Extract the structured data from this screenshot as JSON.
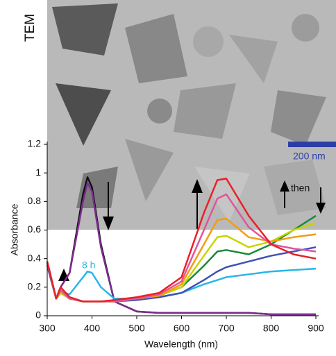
{
  "chart_data": {
    "type": "line",
    "xlabel": "Wavelength (nm)",
    "ylabel": "Absorbance",
    "image_label": "TEM",
    "scale_bar_label": "200 nm",
    "annotations": [
      "8 h",
      "then"
    ],
    "x": [
      300,
      320,
      330,
      350,
      380,
      390,
      400,
      420,
      450,
      500,
      550,
      600,
      650,
      680,
      700,
      750,
      800,
      850,
      900
    ],
    "xlim": [
      300,
      900
    ],
    "xticks": [
      300,
      400,
      500,
      600,
      700,
      800,
      900
    ],
    "ylim": [
      0,
      1.2
    ],
    "yticks": [
      0,
      0.2,
      0.4,
      0.6,
      0.8,
      1,
      1.2
    ],
    "series": [
      {
        "color": "#111111",
        "values": [
          0.38,
          0.12,
          0.2,
          0.3,
          0.85,
          0.97,
          0.9,
          0.5,
          0.1,
          0.03,
          0.02,
          0.02,
          0.02,
          0.02,
          0.02,
          0.02,
          0.01,
          0.01,
          0.01
        ]
      },
      {
        "color": "#7b2d8e",
        "values": [
          0.37,
          0.12,
          0.2,
          0.3,
          0.8,
          0.93,
          0.87,
          0.48,
          0.1,
          0.03,
          0.02,
          0.02,
          0.02,
          0.02,
          0.02,
          0.02,
          0.01,
          0.01,
          0.01
        ]
      },
      {
        "color": "#29b6e8",
        "values": [
          0.36,
          0.12,
          0.17,
          0.15,
          0.27,
          0.31,
          0.3,
          0.2,
          0.12,
          0.12,
          0.13,
          0.16,
          0.22,
          0.25,
          0.27,
          0.29,
          0.31,
          0.32,
          0.33
        ]
      },
      {
        "color": "#3f51b5",
        "values": [
          0.35,
          0.12,
          0.16,
          0.12,
          0.1,
          0.1,
          0.1,
          0.1,
          0.1,
          0.11,
          0.13,
          0.16,
          0.25,
          0.31,
          0.34,
          0.38,
          0.42,
          0.45,
          0.48
        ]
      },
      {
        "color": "#1a8a3a",
        "values": [
          0.38,
          0.12,
          0.16,
          0.12,
          0.1,
          0.1,
          0.1,
          0.1,
          0.1,
          0.12,
          0.14,
          0.2,
          0.35,
          0.45,
          0.46,
          0.43,
          0.5,
          0.6,
          0.7
        ]
      },
      {
        "color": "#c8d400",
        "values": [
          0.38,
          0.12,
          0.16,
          0.12,
          0.1,
          0.1,
          0.1,
          0.1,
          0.1,
          0.12,
          0.14,
          0.2,
          0.42,
          0.55,
          0.56,
          0.48,
          0.52,
          0.6,
          0.65
        ]
      },
      {
        "color": "#f39c12",
        "values": [
          0.38,
          0.12,
          0.17,
          0.12,
          0.1,
          0.1,
          0.1,
          0.1,
          0.1,
          0.12,
          0.14,
          0.22,
          0.5,
          0.67,
          0.68,
          0.55,
          0.52,
          0.55,
          0.57
        ]
      },
      {
        "color": "#e0559a",
        "values": [
          0.38,
          0.12,
          0.18,
          0.12,
          0.1,
          0.1,
          0.1,
          0.1,
          0.1,
          0.12,
          0.15,
          0.24,
          0.6,
          0.82,
          0.85,
          0.62,
          0.5,
          0.47,
          0.45
        ]
      },
      {
        "color": "#e8202a",
        "values": [
          0.38,
          0.12,
          0.2,
          0.13,
          0.1,
          0.1,
          0.1,
          0.1,
          0.11,
          0.13,
          0.16,
          0.27,
          0.72,
          0.95,
          0.96,
          0.7,
          0.5,
          0.43,
          0.4
        ]
      }
    ]
  }
}
